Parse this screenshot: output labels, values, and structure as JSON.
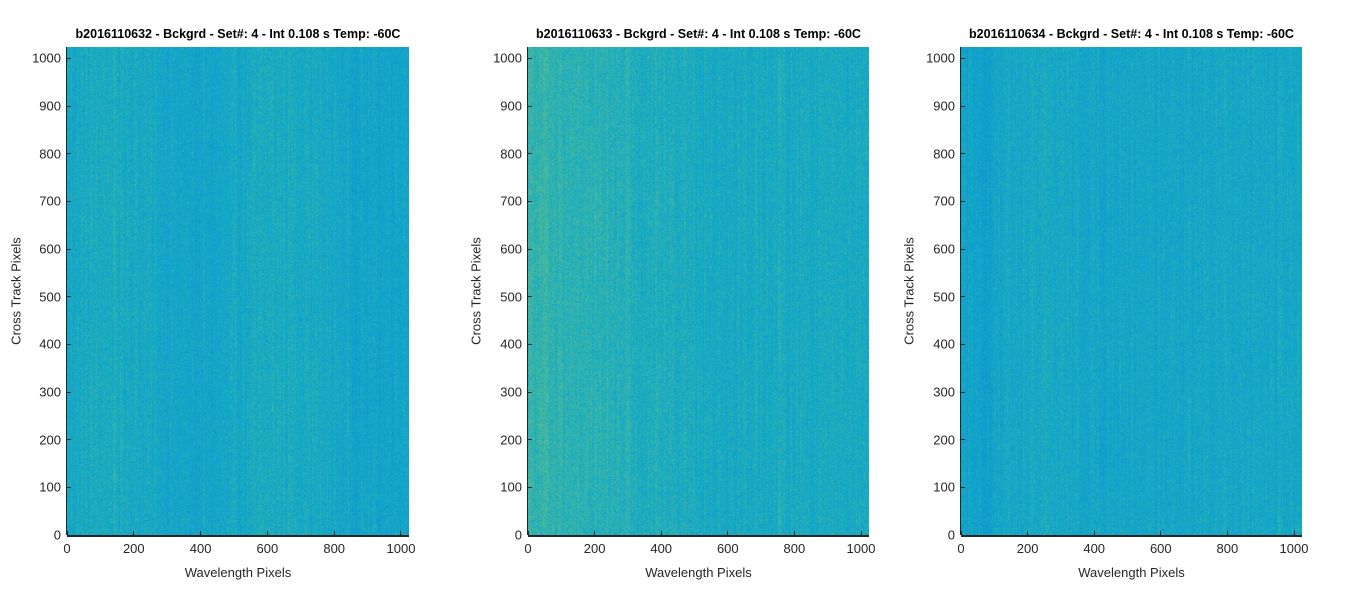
{
  "chart_data": [
    {
      "type": "heatmap",
      "title": "b2016110632 - Bckgrd - Set#: 4 - Int 0.108 s Temp: -60C",
      "xlabel": "Wavelength Pixels",
      "ylabel": "Cross Track Pixels",
      "xlim": [
        0,
        1024
      ],
      "ylim": [
        0,
        1024
      ],
      "xticks": [
        0,
        200,
        400,
        600,
        800,
        1000
      ],
      "yticks": [
        0,
        100,
        200,
        300,
        400,
        500,
        600,
        700,
        800,
        900,
        1000
      ],
      "colormap": "parula",
      "colors": {
        "low": "#0a8ad6",
        "mid": "#14aac6",
        "high": "#5fbf8a",
        "peak": "#b9c94f"
      },
      "pattern": "vertical-streak background noise, fairly uniform"
    },
    {
      "type": "heatmap",
      "title": "b2016110633 - Bckgrd - Set#: 4 - Int 0.108 s Temp: -60C",
      "xlabel": "Wavelength Pixels",
      "ylabel": "Cross Track Pixels",
      "xlim": [
        0,
        1024
      ],
      "ylim": [
        0,
        1024
      ],
      "xticks": [
        0,
        200,
        400,
        600,
        800,
        1000
      ],
      "yticks": [
        0,
        100,
        200,
        300,
        400,
        500,
        600,
        700,
        800,
        900,
        1000
      ],
      "colormap": "parula",
      "colors": {
        "low": "#0a8ad6",
        "mid": "#14aac6",
        "high": "#5fbf8a",
        "peak": "#b9c94f"
      },
      "pattern": "vertical-streak background noise, brighter toward left"
    },
    {
      "type": "heatmap",
      "title": "b2016110634 - Bckgrd - Set#: 4 - Int 0.108 s Temp: -60C",
      "xlabel": "Wavelength Pixels",
      "ylabel": "Cross Track Pixels",
      "xlim": [
        0,
        1024
      ],
      "ylim": [
        0,
        1024
      ],
      "xticks": [
        0,
        200,
        400,
        600,
        800,
        1000
      ],
      "yticks": [
        0,
        100,
        200,
        300,
        400,
        500,
        600,
        700,
        800,
        900,
        1000
      ],
      "colormap": "parula",
      "colors": {
        "low": "#0a8ad6",
        "mid": "#14aac6",
        "high": "#5fbf8a",
        "peak": "#b9c94f"
      },
      "pattern": "vertical-streak background noise, darker band near x=150"
    }
  ]
}
